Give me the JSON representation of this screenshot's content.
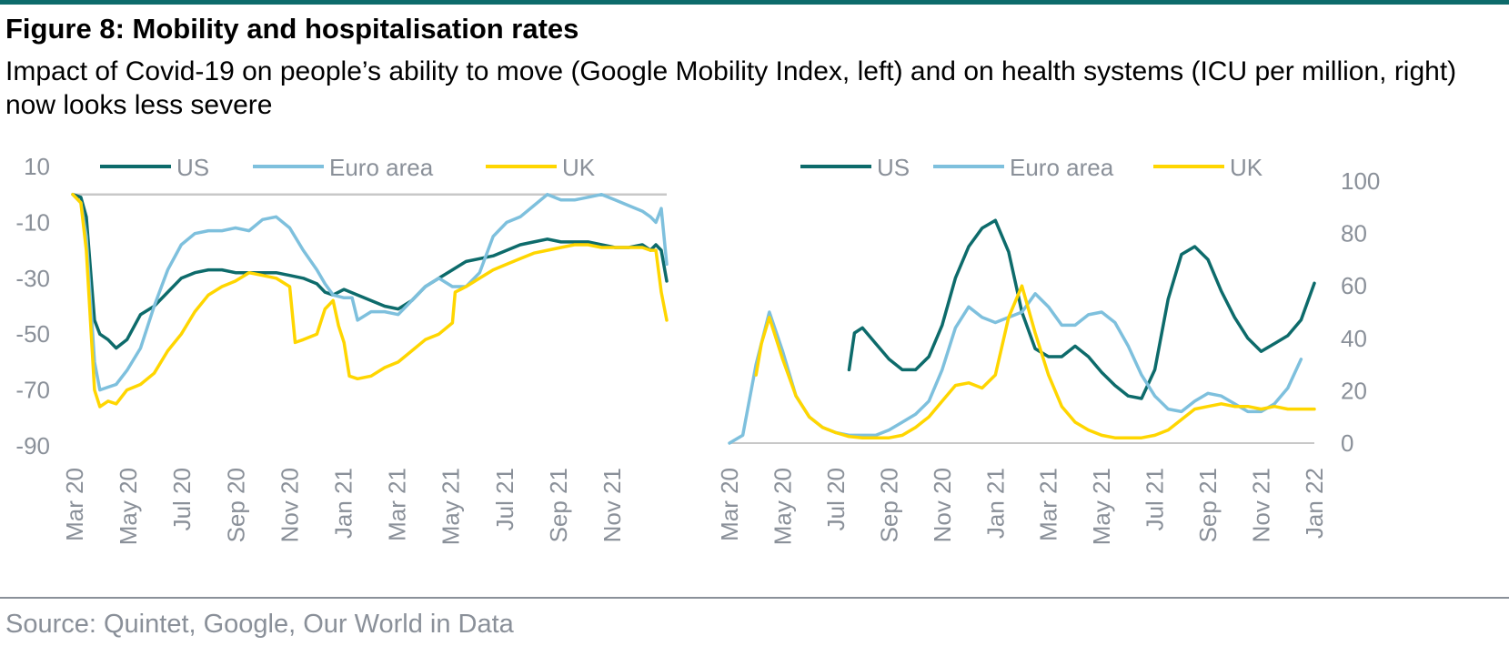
{
  "figure": {
    "title": "Figure 8: Mobility and hospitalisation rates",
    "subtitle": "Impact of Covid-19 on people’s ability to move (Google Mobility Index, left) and on health systems (ICU per million, right) now looks less severe",
    "source": "Source: Quintet, Google, Our World in Data"
  },
  "colors": {
    "us": "#0d6b6b",
    "euro": "#7ec0dd",
    "uk": "#ffd600",
    "axis": "#8a9099",
    "zero": "#c8c8c8"
  },
  "chart_data": [
    {
      "type": "line",
      "title": "",
      "xlabel": "",
      "ylabel": "",
      "x_ticks": [
        "Mar 20",
        "May 20",
        "Jul 20",
        "Sep 20",
        "Nov 20",
        "Jan 21",
        "Mar 21",
        "May 21",
        "Jul 21",
        "Sep 21",
        "Nov 21"
      ],
      "y_ticks": [
        10,
        -10,
        -30,
        -50,
        -70,
        -90
      ],
      "ylim": [
        -90,
        10
      ],
      "xlim": [
        0,
        21.9
      ],
      "reference_line": 0,
      "legend_position": "top",
      "series": [
        {
          "name": "US",
          "color": "#0d6b6b",
          "x": [
            0,
            0.3,
            0.5,
            0.8,
            1.0,
            1.3,
            1.6,
            2.0,
            2.5,
            3.0,
            3.5,
            4.0,
            4.5,
            5.0,
            5.5,
            6.0,
            6.5,
            7.0,
            7.5,
            8.0,
            8.5,
            9.0,
            9.3,
            9.6,
            10.0,
            10.5,
            11.0,
            11.5,
            12.0,
            12.5,
            13.0,
            13.5,
            14.0,
            14.5,
            15.0,
            15.5,
            16.0,
            16.5,
            17.0,
            17.5,
            18.0,
            18.5,
            19.0,
            19.5,
            20.0,
            20.5,
            21.0,
            21.3,
            21.5,
            21.7,
            21.9
          ],
          "y": [
            0,
            -1,
            -8,
            -45,
            -50,
            -52,
            -55,
            -52,
            -43,
            -40,
            -35,
            -30,
            -28,
            -27,
            -27,
            -28,
            -28,
            -28,
            -28,
            -29,
            -30,
            -32,
            -35,
            -36,
            -34,
            -36,
            -38,
            -40,
            -41,
            -38,
            -33,
            -30,
            -27,
            -24,
            -23,
            -22,
            -20,
            -18,
            -17,
            -16,
            -17,
            -17,
            -17,
            -18,
            -19,
            -19,
            -18,
            -20,
            -18,
            -20,
            -31
          ]
        },
        {
          "name": "Euro area",
          "color": "#7ec0dd",
          "x": [
            0,
            0.3,
            0.5,
            0.8,
            1.0,
            1.3,
            1.6,
            2.0,
            2.5,
            3.0,
            3.5,
            4.0,
            4.5,
            5.0,
            5.5,
            6.0,
            6.5,
            7.0,
            7.5,
            8.0,
            8.5,
            9.0,
            9.3,
            9.6,
            10.0,
            10.3,
            10.5,
            11.0,
            11.5,
            12.0,
            12.5,
            13.0,
            13.5,
            14.0,
            14.5,
            15.0,
            15.5,
            16.0,
            16.5,
            17.0,
            17.5,
            18.0,
            18.5,
            19.0,
            19.5,
            20.0,
            20.5,
            21.0,
            21.3,
            21.5,
            21.7,
            21.9
          ],
          "y": [
            0,
            -3,
            -15,
            -60,
            -70,
            -69,
            -68,
            -63,
            -55,
            -40,
            -27,
            -18,
            -14,
            -13,
            -13,
            -12,
            -13,
            -9,
            -8,
            -12,
            -20,
            -27,
            -32,
            -36,
            -37,
            -37,
            -45,
            -42,
            -42,
            -43,
            -38,
            -33,
            -30,
            -33,
            -33,
            -28,
            -15,
            -10,
            -8,
            -4,
            0,
            -2,
            -2,
            -1,
            0,
            -2,
            -4,
            -6,
            -8,
            -10,
            -5,
            -25
          ]
        },
        {
          "name": "UK",
          "color": "#ffd600",
          "x": [
            0,
            0.3,
            0.5,
            0.8,
            1.0,
            1.3,
            1.6,
            2.0,
            2.5,
            3.0,
            3.5,
            4.0,
            4.5,
            5.0,
            5.5,
            6.0,
            6.5,
            7.0,
            7.5,
            8.0,
            8.2,
            8.5,
            9.0,
            9.3,
            9.6,
            9.8,
            10.0,
            10.2,
            10.5,
            11.0,
            11.5,
            12.0,
            12.5,
            13.0,
            13.5,
            14.0,
            14.1,
            14.5,
            15.0,
            15.5,
            16.0,
            16.5,
            17.0,
            17.5,
            18.0,
            18.5,
            19.0,
            19.5,
            20.0,
            20.5,
            21.0,
            21.3,
            21.5,
            21.7,
            21.9
          ],
          "y": [
            0,
            -3,
            -20,
            -70,
            -76,
            -74,
            -75,
            -70,
            -68,
            -64,
            -56,
            -50,
            -42,
            -36,
            -33,
            -31,
            -28,
            -29,
            -30,
            -33,
            -53,
            -52,
            -50,
            -41,
            -38,
            -47,
            -53,
            -65,
            -66,
            -65,
            -62,
            -60,
            -56,
            -52,
            -50,
            -46,
            -35,
            -33,
            -30,
            -27,
            -25,
            -23,
            -21,
            -20,
            -19,
            -18,
            -18,
            -19,
            -19,
            -19,
            -19,
            -20,
            -20,
            -35,
            -45
          ]
        }
      ]
    },
    {
      "type": "line",
      "title": "",
      "xlabel": "",
      "ylabel": "",
      "x_ticks": [
        "Mar 20",
        "May 20",
        "Jul 20",
        "Sep 20",
        "Nov 20",
        "Jan 21",
        "Mar 21",
        "May 21",
        "Jul 21",
        "Sep 21",
        "Nov 21",
        "Jan 22"
      ],
      "y_ticks": [
        100,
        80,
        60,
        40,
        20,
        0
      ],
      "ylim": [
        0,
        100
      ],
      "xlim": [
        0,
        22
      ],
      "y_axis_side": "right",
      "legend_position": "top",
      "series": [
        {
          "name": "US",
          "color": "#0d6b6b",
          "x": [
            4.5,
            4.7,
            5.0,
            5.5,
            6.0,
            6.5,
            7.0,
            7.5,
            8.0,
            8.5,
            9.0,
            9.5,
            10.0,
            10.5,
            11.0,
            11.5,
            12.0,
            12.5,
            13.0,
            13.5,
            14.0,
            14.5,
            15.0,
            15.5,
            16.0,
            16.5,
            17.0,
            17.5,
            18.0,
            18.5,
            19.0,
            19.5,
            20.0,
            20.5,
            21.0,
            21.5,
            22.0
          ],
          "y": [
            28,
            42,
            44,
            38,
            32,
            28,
            28,
            33,
            45,
            63,
            75,
            82,
            85,
            73,
            50,
            36,
            33,
            33,
            37,
            33,
            27,
            22,
            18,
            17,
            28,
            55,
            72,
            75,
            70,
            58,
            48,
            40,
            35,
            38,
            41,
            47,
            61
          ]
        },
        {
          "name": "Euro area",
          "color": "#7ec0dd",
          "x": [
            0,
            0.5,
            1.0,
            1.5,
            2.0,
            2.5,
            3.0,
            3.5,
            4.0,
            4.5,
            5.0,
            5.5,
            6.0,
            6.5,
            7.0,
            7.5,
            8.0,
            8.5,
            9.0,
            9.5,
            10.0,
            10.5,
            11.0,
            11.5,
            12.0,
            12.5,
            13.0,
            13.5,
            14.0,
            14.5,
            15.0,
            15.5,
            16.0,
            16.5,
            17.0,
            17.5,
            18.0,
            18.5,
            19.0,
            19.5,
            20.0,
            20.5,
            21.0,
            21.5
          ],
          "y": [
            0,
            3,
            30,
            50,
            35,
            18,
            10,
            6,
            4,
            3,
            3,
            3,
            5,
            8,
            11,
            16,
            28,
            44,
            52,
            48,
            46,
            48,
            50,
            57,
            52,
            45,
            45,
            49,
            50,
            46,
            37,
            26,
            18,
            13,
            12,
            16,
            19,
            18,
            15,
            12,
            12,
            15,
            21,
            32
          ]
        },
        {
          "name": "UK",
          "color": "#ffd600",
          "x": [
            1.0,
            1.2,
            1.5,
            2.0,
            2.5,
            3.0,
            3.5,
            4.0,
            4.5,
            5.0,
            5.5,
            6.0,
            6.5,
            7.0,
            7.5,
            8.0,
            8.5,
            9.0,
            9.5,
            10.0,
            10.5,
            11.0,
            11.5,
            12.0,
            12.5,
            13.0,
            13.5,
            14.0,
            14.5,
            15.0,
            15.5,
            16.0,
            16.5,
            17.0,
            17.5,
            18.0,
            18.5,
            19.0,
            19.5,
            20.0,
            20.5,
            21.0,
            21.5,
            22.0
          ],
          "y": [
            26,
            38,
            48,
            32,
            18,
            10,
            6,
            4,
            2.5,
            2,
            2,
            2,
            3,
            6,
            10,
            16,
            22,
            23,
            21,
            26,
            48,
            60,
            42,
            26,
            14,
            8,
            5,
            3,
            2,
            2,
            2,
            3,
            5,
            9,
            13,
            14,
            15,
            14,
            14,
            13,
            14,
            13,
            13,
            13
          ]
        }
      ]
    }
  ]
}
